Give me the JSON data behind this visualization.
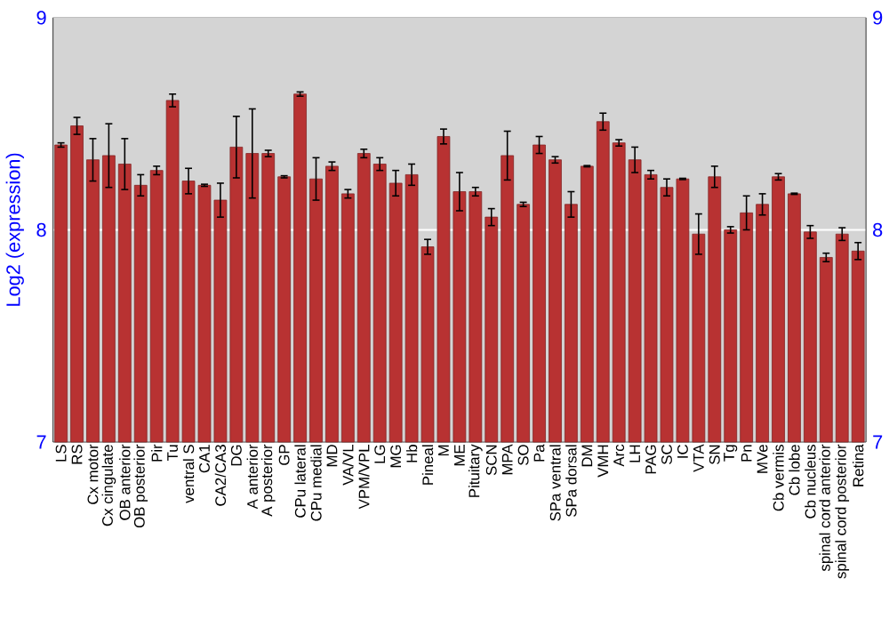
{
  "chart_data": {
    "type": "bar",
    "ylabel": "Log2 (expression)",
    "categories": [
      "LS",
      "RS",
      "Cx motor",
      "Cx cingulate",
      "OB anterior",
      "OB posterior",
      "Pir",
      "Tu",
      "ventral S",
      "CA1",
      "CA2/CA3",
      "DG",
      "A anterior",
      "A posterior",
      "GP",
      "CPu lateral",
      "CPu medial",
      "MD",
      "VA/VL",
      "VPM/VPL",
      "LG",
      "MG",
      "Hb",
      "Pineal",
      "M",
      "ME",
      "Pituitary",
      "SCN",
      "MPA",
      "SO",
      "Pa",
      "SPa ventral",
      "SPa dorsal",
      "DM",
      "VMH",
      "Arc",
      "LH",
      "PAG",
      "SC",
      "IC",
      "VTA",
      "SN",
      "Tg",
      "Pn",
      "MVe",
      "Cb vermis",
      "Cb lobe",
      "Cb nucleus",
      "spinal cord anterior",
      "spinal cord posterior",
      "Retina"
    ],
    "values": [
      8.4,
      8.49,
      8.33,
      8.35,
      8.31,
      8.21,
      8.28,
      8.61,
      8.23,
      8.21,
      8.14,
      8.39,
      8.36,
      8.36,
      8.25,
      8.64,
      8.24,
      8.3,
      8.17,
      8.36,
      8.31,
      8.22,
      8.26,
      7.92,
      8.44,
      8.18,
      8.18,
      8.06,
      8.35,
      8.12,
      8.4,
      8.33,
      8.12,
      8.3,
      8.51,
      8.41,
      8.33,
      8.26,
      8.2,
      8.24,
      7.98,
      8.25,
      8.0,
      8.08,
      8.12,
      8.25,
      8.17,
      7.99,
      7.87,
      7.98,
      7.9
    ],
    "errors": [
      0.01,
      0.04,
      0.1,
      0.15,
      0.12,
      0.05,
      0.02,
      0.03,
      0.06,
      0.005,
      0.08,
      0.145,
      0.21,
      0.015,
      0.005,
      0.01,
      0.1,
      0.02,
      0.02,
      0.02,
      0.03,
      0.06,
      0.05,
      0.035,
      0.035,
      0.09,
      0.02,
      0.04,
      0.115,
      0.01,
      0.04,
      0.015,
      0.06,
      0.003,
      0.04,
      0.015,
      0.06,
      0.02,
      0.04,
      0.003,
      0.095,
      0.05,
      0.015,
      0.08,
      0.05,
      0.015,
      0.003,
      0.03,
      0.02,
      0.03,
      0.04
    ],
    "color": "#b83232",
    "ylim": [
      7,
      9
    ],
    "yticks": [
      7,
      8,
      9
    ],
    "y2lim": [
      7,
      9
    ],
    "y2ticks": [
      7,
      8,
      9
    ],
    "grid": "y"
  }
}
